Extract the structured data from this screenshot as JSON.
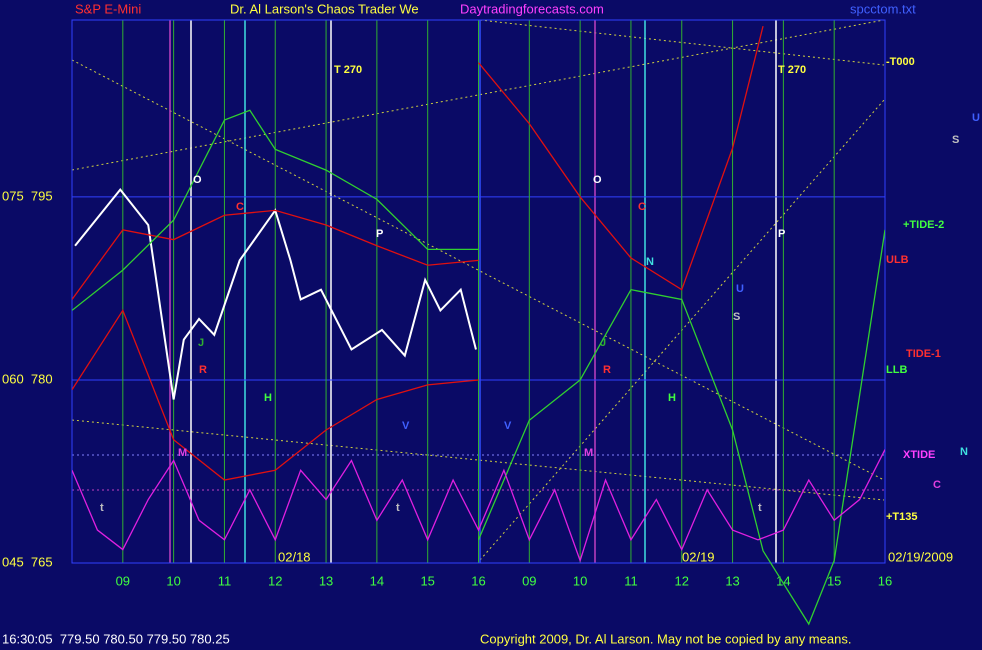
{
  "chart_data": {
    "type": "line",
    "symbol": "S&P E-Mini",
    "title": "Dr. Al Larson's Chaos Trader We",
    "site": "Daytradingforecasts.com",
    "file": "spcctom.txt",
    "status": "16:30:05  779.50 780.50 779.50 780.25",
    "copyright": "Copyright 2009, Dr. Al Larson. May not be copied by any means.",
    "dates": [
      "02/18",
      "02/19",
      "02/19/2009"
    ],
    "xlim": [
      0,
      16
    ],
    "xticks": [
      {
        "value": 1,
        "label": "09"
      },
      {
        "value": 2,
        "label": "10"
      },
      {
        "value": 3,
        "label": "11"
      },
      {
        "value": 4,
        "label": "12"
      },
      {
        "value": 5,
        "label": "13"
      },
      {
        "value": 6,
        "label": "14"
      },
      {
        "value": 7,
        "label": "15"
      },
      {
        "value": 8,
        "label": "16"
      },
      {
        "value": 9,
        "label": "09"
      },
      {
        "value": 10,
        "label": "10"
      },
      {
        "value": 11,
        "label": "11"
      },
      {
        "value": 12,
        "label": "12"
      },
      {
        "value": 13,
        "label": "13"
      },
      {
        "value": 14,
        "label": "14"
      },
      {
        "value": 15,
        "label": "15"
      },
      {
        "value": 16,
        "label": "16"
      }
    ],
    "ylim": [
      765,
      809.5
    ],
    "yticks": [
      {
        "value": 765,
        "label": "045  765"
      },
      {
        "value": 780,
        "label": "060  780"
      },
      {
        "value": 795,
        "label": "075  795"
      }
    ],
    "right_labels": [
      "-T000",
      "+TIDE-2",
      "ULB",
      "TIDE-1",
      "LLB",
      "XTIDE",
      "+T135",
      "N",
      "C",
      "U",
      "S"
    ],
    "annotations": [
      "T 270",
      "T 270",
      "O",
      "O",
      "C",
      "C",
      "P",
      "P",
      "N",
      "U",
      "S",
      "J",
      "J",
      "R",
      "R",
      "H",
      "H",
      "V",
      "V",
      "M",
      "M",
      "t",
      "t",
      "t"
    ],
    "series": [
      {
        "name": "price",
        "color": "#ffffff",
        "x": [
          0.06,
          0.95,
          1.5,
          2.0,
          2.2,
          2.5,
          2.8,
          3.3,
          4.0,
          4.3,
          4.5,
          4.9,
          5.5,
          6.1,
          6.55,
          6.95,
          7.25,
          7.65,
          7.95
        ],
        "values": [
          791,
          795.6,
          792.7,
          778.4,
          783.3,
          785,
          783.7,
          789.8,
          793.9,
          789.8,
          786.6,
          787.4,
          782.5,
          784.1,
          782,
          788.2,
          785.7,
          787.4,
          782.5
        ]
      },
      {
        "name": "upper band",
        "color": "#e01010",
        "x": [
          0,
          1,
          2,
          3,
          4,
          5,
          6,
          7,
          8
        ],
        "values": [
          786.6,
          792.3,
          791.5,
          793.5,
          793.9,
          792.7,
          791,
          789.4,
          789.8
        ]
      },
      {
        "name": "lower band",
        "color": "#e01010",
        "x": [
          0,
          1,
          2,
          3,
          4,
          5,
          6,
          7,
          8
        ],
        "values": [
          779.2,
          785.7,
          775.1,
          771.8,
          772.6,
          775.9,
          778.4,
          779.6,
          780
        ]
      },
      {
        "name": "red forecast",
        "color": "#e01010",
        "x": [
          8,
          9,
          10,
          11,
          12,
          13,
          13.6
        ],
        "values": [
          806,
          801,
          795,
          790,
          787.4,
          799,
          809
        ]
      },
      {
        "name": "green line",
        "color": "#30d030",
        "x": [
          0,
          1,
          2,
          3,
          3.5,
          4,
          5,
          6,
          7,
          8
        ],
        "values": [
          785.7,
          789,
          793.1,
          801.3,
          802.1,
          798.9,
          797.2,
          794.8,
          790.7,
          790.7
        ]
      },
      {
        "name": "green forecast",
        "color": "#30d030",
        "x": [
          8,
          9,
          10,
          11,
          12,
          13,
          13.6,
          14.5,
          15,
          16
        ],
        "values": [
          766.9,
          776.7,
          780,
          787.4,
          786.6,
          775.9,
          766,
          760,
          765.2,
          792.3
        ]
      },
      {
        "name": "oscillator",
        "color": "#e020e0",
        "x": [
          0,
          0.5,
          1,
          1.5,
          2,
          2.5,
          3,
          3.5,
          4,
          4.5,
          5,
          5.5,
          6,
          6.5,
          7,
          7.5,
          8,
          8.5,
          9,
          9.5,
          10,
          10.5,
          11,
          11.5,
          12,
          12.5,
          13,
          13.5,
          14,
          14.5,
          15,
          15.5,
          16
        ],
        "values": [
          772.6,
          767.7,
          766.1,
          770.2,
          773.4,
          768.5,
          766.9,
          771,
          766.9,
          772.6,
          770.2,
          773.4,
          768.5,
          771.8,
          766.9,
          771.8,
          767.7,
          772.6,
          766.9,
          771,
          765.2,
          771.8,
          766.9,
          770.2,
          766.1,
          771,
          767.7,
          766.9,
          767.7,
          771.8,
          768.5,
          770.2,
          774.3
        ]
      }
    ]
  }
}
